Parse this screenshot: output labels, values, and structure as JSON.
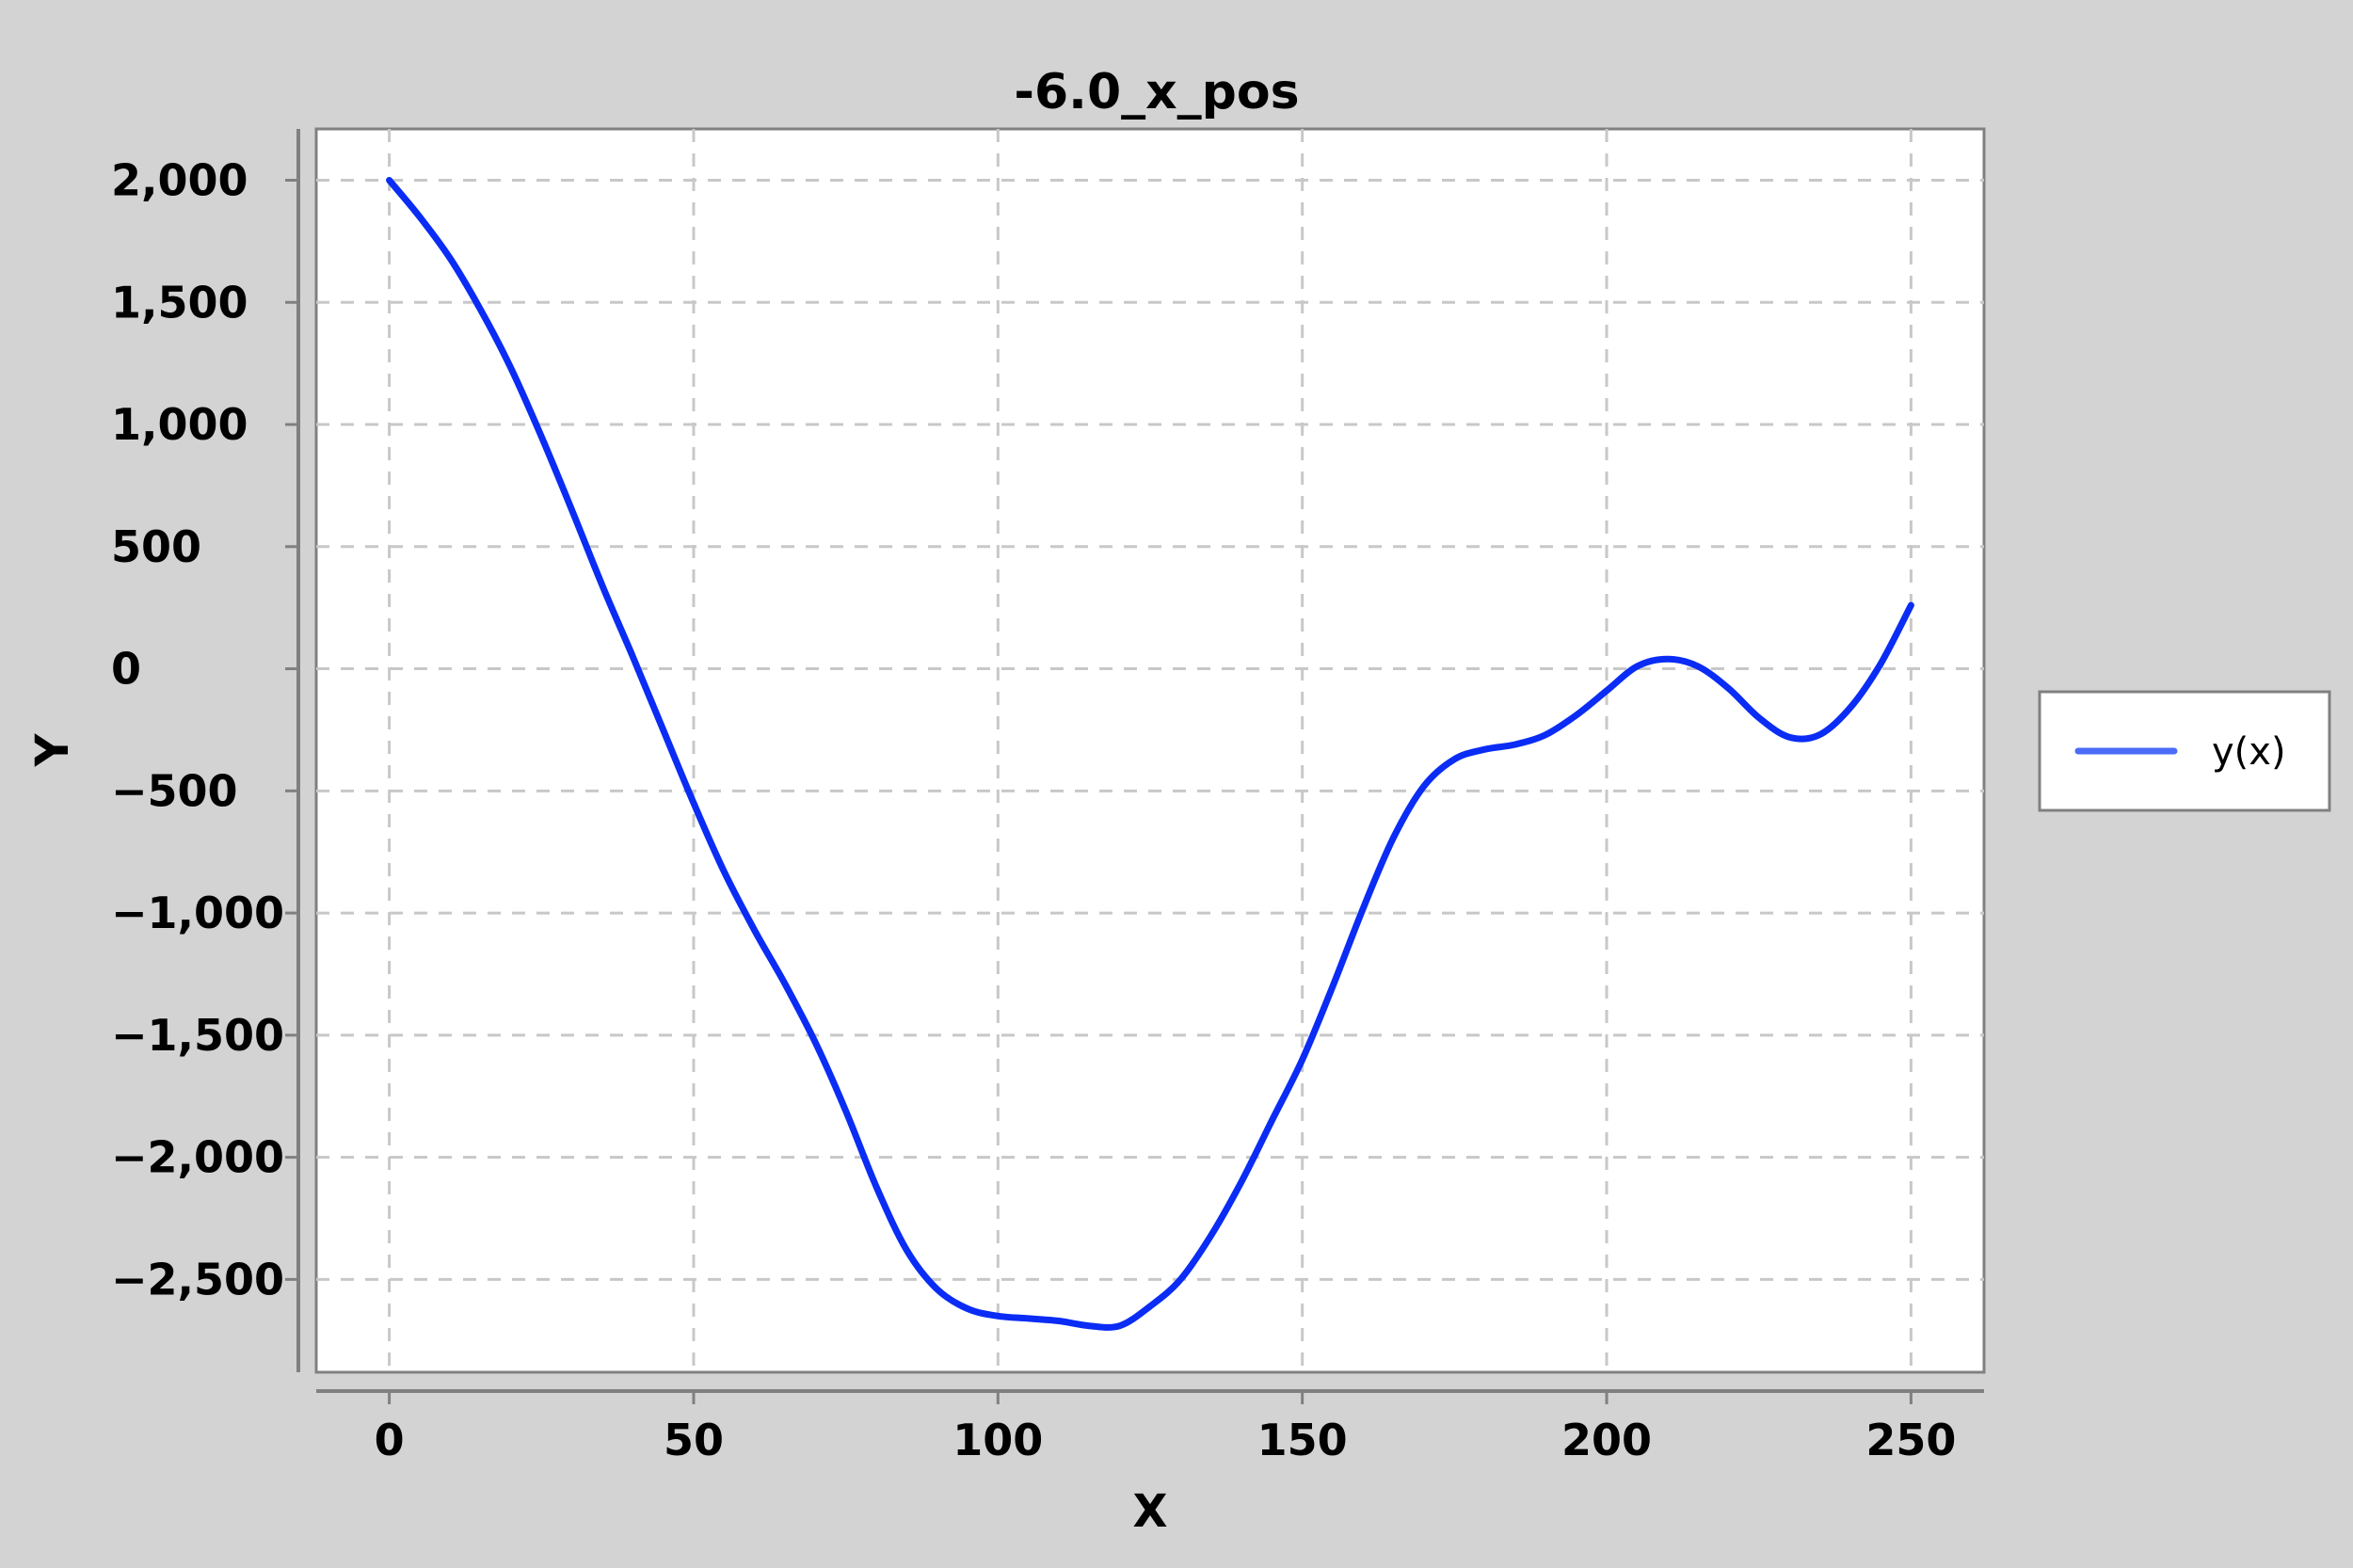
{
  "chart_data": {
    "type": "line",
    "title": "-6.0_x_pos",
    "xlabel": "X",
    "ylabel": "Y",
    "xlim": [
      -12,
      262
    ],
    "ylim": [
      -2880,
      2210
    ],
    "x_ticks": [
      0,
      50,
      100,
      150,
      200,
      250
    ],
    "x_tick_labels": [
      "0",
      "50",
      "100",
      "150",
      "200",
      "250"
    ],
    "y_ticks": [
      2000,
      1500,
      1000,
      500,
      0,
      -500,
      -1000,
      -1500,
      -2000,
      -2500
    ],
    "y_tick_labels": [
      "2,000",
      "1,500",
      "1,000",
      "500",
      "0",
      "−500",
      "−1,000",
      "−1,500",
      "−2,000",
      "−2,500"
    ],
    "grid": true,
    "legend_position": "right",
    "series": [
      {
        "name": "y(x)",
        "color": "#0a2cf5",
        "legend_color": "#4a6cf7",
        "points": [
          [
            0,
            2000
          ],
          [
            5,
            1850
          ],
          [
            10,
            1680
          ],
          [
            15,
            1470
          ],
          [
            20,
            1230
          ],
          [
            25,
            950
          ],
          [
            30,
            650
          ],
          [
            35,
            340
          ],
          [
            40,
            50
          ],
          [
            45,
            -250
          ],
          [
            50,
            -550
          ],
          [
            55,
            -830
          ],
          [
            60,
            -1070
          ],
          [
            65,
            -1290
          ],
          [
            70,
            -1530
          ],
          [
            75,
            -1810
          ],
          [
            80,
            -2120
          ],
          [
            85,
            -2380
          ],
          [
            90,
            -2540
          ],
          [
            95,
            -2620
          ],
          [
            100,
            -2650
          ],
          [
            105,
            -2660
          ],
          [
            110,
            -2670
          ],
          [
            115,
            -2690
          ],
          [
            120,
            -2690
          ],
          [
            125,
            -2610
          ],
          [
            130,
            -2500
          ],
          [
            135,
            -2320
          ],
          [
            140,
            -2100
          ],
          [
            145,
            -1850
          ],
          [
            150,
            -1600
          ],
          [
            155,
            -1300
          ],
          [
            160,
            -980
          ],
          [
            165,
            -690
          ],
          [
            170,
            -480
          ],
          [
            175,
            -370
          ],
          [
            180,
            -330
          ],
          [
            185,
            -310
          ],
          [
            190,
            -270
          ],
          [
            195,
            -190
          ],
          [
            200,
            -90
          ],
          [
            205,
            10
          ],
          [
            210,
            40
          ],
          [
            215,
            10
          ],
          [
            220,
            -80
          ],
          [
            225,
            -200
          ],
          [
            230,
            -280
          ],
          [
            235,
            -270
          ],
          [
            240,
            -160
          ],
          [
            245,
            20
          ],
          [
            250,
            260
          ]
        ]
      }
    ]
  }
}
